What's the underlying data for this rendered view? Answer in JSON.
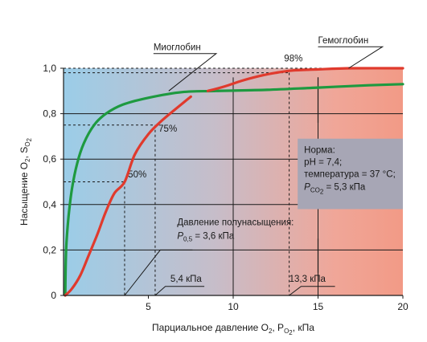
{
  "chart_data": {
    "type": "line",
    "xlabel": {
      "text": "Парциальное давление O",
      "sub1": "2",
      "mid": ", P",
      "sub2": "O",
      "sub3": "2",
      "tail": ", кПа"
    },
    "ylabel": {
      "text": "Насыщение O",
      "sub1": "2",
      "mid": ", S",
      "sub2": "O",
      "sub3": "2"
    },
    "xlim": [
      0,
      20
    ],
    "ylim": [
      0,
      1.0
    ],
    "x_ticks": [
      {
        "value": 5,
        "label": "5"
      },
      {
        "value": 10,
        "label": "10"
      },
      {
        "value": 15,
        "label": "15"
      },
      {
        "value": 20,
        "label": "20"
      }
    ],
    "y_ticks": [
      {
        "value": 0,
        "label": "0"
      },
      {
        "value": 0.2,
        "label": "0,2"
      },
      {
        "value": 0.4,
        "label": "0,4"
      },
      {
        "value": 0.6,
        "label": "0,6"
      },
      {
        "value": 0.8,
        "label": "0,8"
      },
      {
        "value": 1.0,
        "label": "1,0"
      }
    ],
    "series": [
      {
        "name": "Миоглобин",
        "color": "#1e9a40",
        "points": [
          [
            0.1,
            0.0
          ],
          [
            0.15,
            0.2
          ],
          [
            0.3,
            0.35
          ],
          [
            0.5,
            0.47
          ],
          [
            0.8,
            0.58
          ],
          [
            1.2,
            0.67
          ],
          [
            1.8,
            0.75
          ],
          [
            2.5,
            0.8
          ],
          [
            3.5,
            0.84
          ],
          [
            5.0,
            0.87
          ],
          [
            7.0,
            0.895
          ],
          [
            9.0,
            0.9
          ],
          [
            12.0,
            0.905
          ],
          [
            15.0,
            0.915
          ],
          [
            18.0,
            0.925
          ],
          [
            20.0,
            0.93
          ]
        ]
      },
      {
        "name": "Гемоглобин",
        "color": "#e03a2d",
        "segments": [
          [
            [
              0.1,
              0.0
            ],
            [
              0.5,
              0.03
            ],
            [
              1.0,
              0.09
            ],
            [
              1.5,
              0.18
            ],
            [
              2.0,
              0.27
            ],
            [
              2.5,
              0.37
            ],
            [
              3.0,
              0.45
            ],
            [
              3.6,
              0.5
            ],
            [
              4.2,
              0.62
            ],
            [
              5.0,
              0.71
            ],
            [
              5.8,
              0.77
            ],
            [
              6.6,
              0.82
            ],
            [
              7.5,
              0.875
            ]
          ],
          [
            [
              8.5,
              0.9
            ],
            [
              9.5,
              0.92
            ],
            [
              10.5,
              0.945
            ],
            [
              11.5,
              0.965
            ],
            [
              12.5,
              0.98
            ],
            [
              13.5,
              0.99
            ],
            [
              15.0,
              0.995
            ],
            [
              17.0,
              1.0
            ],
            [
              20.0,
              1.0
            ]
          ]
        ]
      }
    ],
    "series_labels": [
      {
        "text": "Миоглобин",
        "x": 5.3,
        "y": 1.1,
        "lx": 9.0,
        "ly": 1.06,
        "tx": 6.2,
        "ty": 0.9
      },
      {
        "text": "Гемоглобин",
        "x": 15.0,
        "y": 1.13,
        "lx": 18.8,
        "ly": 1.1,
        "tx": 16.8,
        "ty": 1.0
      }
    ],
    "reference_lines": [
      {
        "x": 3.6,
        "y": 0.5,
        "label": "50%",
        "lx": 3.8,
        "ly": 0.52
      },
      {
        "x": 5.4,
        "y": 0.75,
        "label": "75%",
        "lx": 5.6,
        "ly": 0.72
      },
      {
        "x": 13.3,
        "y": 0.98,
        "label": "98%",
        "lx": 13.0,
        "ly": 1.03
      }
    ],
    "y_full_dash": 1.0,
    "vertical_markers": [
      10,
      15
    ],
    "vertical_marker_range": [
      0.76,
      0.96
    ],
    "horizontal_marker_range": [
      0.1,
      0.25
    ],
    "annotations": [
      {
        "text": "Давление полунасыщения:",
        "x": 6.7,
        "y": 0.31
      },
      {
        "text_main": "P",
        "sub": "0,5",
        "text_tail": " = 3,6 кПа",
        "x": 6.7,
        "y": 0.25
      },
      {
        "text": "5,4 кПа",
        "x": 6.3,
        "y": 0.06
      },
      {
        "text": "13,3 кПа",
        "x": 13.3,
        "y": 0.06
      }
    ],
    "leader_lines": [
      [
        [
          3.6,
          0.0
        ],
        [
          5.7,
          0.2
        ],
        [
          7.6,
          0.2
        ]
      ],
      [
        [
          5.4,
          0.0
        ],
        [
          6.0,
          0.04
        ],
        [
          8.3,
          0.04
        ]
      ],
      [
        [
          13.3,
          0.0
        ],
        [
          14.0,
          0.04
        ],
        [
          16.0,
          0.04
        ]
      ]
    ],
    "norm_box": {
      "title": "Норма:",
      "ph": "pH = 7,4;",
      "temp": "температура = 37 °C;",
      "pco2_main": "P",
      "pco2_sub": "CO",
      "pco2_sub2": "2",
      "pco2_tail": " = 5,3 кПа",
      "fill": "#a7a6b5",
      "x0": 13.8,
      "x1": 20.0,
      "y0": 0.38,
      "y1": 0.69
    },
    "background_gradient": [
      "#9bcde8",
      "#c7bdc9",
      "#f0a698",
      "#f29a86"
    ]
  }
}
